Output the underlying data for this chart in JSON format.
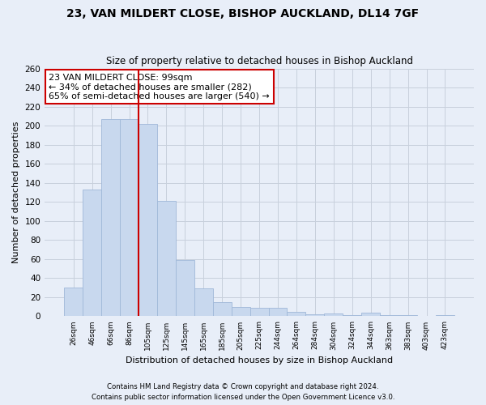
{
  "title": "23, VAN MILDERT CLOSE, BISHOP AUCKLAND, DL14 7GF",
  "subtitle": "Size of property relative to detached houses in Bishop Auckland",
  "xlabel": "Distribution of detached houses by size in Bishop Auckland",
  "ylabel": "Number of detached properties",
  "bar_labels": [
    "26sqm",
    "46sqm",
    "66sqm",
    "86sqm",
    "105sqm",
    "125sqm",
    "145sqm",
    "165sqm",
    "185sqm",
    "205sqm",
    "225sqm",
    "244sqm",
    "264sqm",
    "284sqm",
    "304sqm",
    "324sqm",
    "344sqm",
    "363sqm",
    "383sqm",
    "403sqm",
    "423sqm"
  ],
  "bar_values": [
    30,
    133,
    207,
    207,
    202,
    121,
    59,
    29,
    15,
    10,
    9,
    9,
    5,
    2,
    3,
    1,
    4,
    1,
    1,
    0,
    1
  ],
  "bar_color": "#c8d8ee",
  "bar_edge_color": "#a0b8d8",
  "vline_color": "#cc0000",
  "vline_position": 4,
  "annotation_text": "23 VAN MILDERT CLOSE: 99sqm\n← 34% of detached houses are smaller (282)\n65% of semi-detached houses are larger (540) →",
  "annotation_box_color": "white",
  "annotation_box_edge": "#cc0000",
  "ylim": [
    0,
    260
  ],
  "yticks": [
    0,
    20,
    40,
    60,
    80,
    100,
    120,
    140,
    160,
    180,
    200,
    220,
    240,
    260
  ],
  "grid_color": "#c8d0dc",
  "background_color": "#e8eef8",
  "plot_bg_color": "#e8eef8",
  "footer1": "Contains HM Land Registry data © Crown copyright and database right 2024.",
  "footer2": "Contains public sector information licensed under the Open Government Licence v3.0."
}
